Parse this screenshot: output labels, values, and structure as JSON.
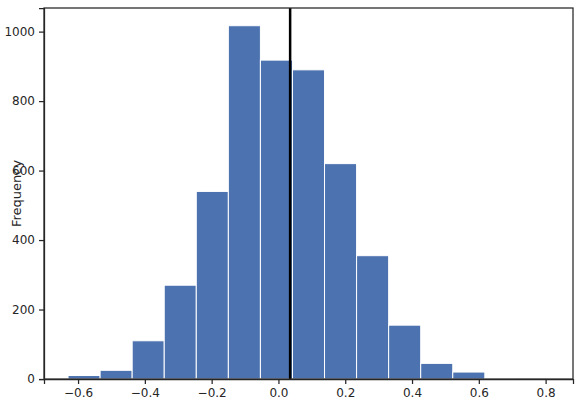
{
  "chart_data": {
    "type": "histogram",
    "y_label": "Frequency",
    "bins": [
      -0.63,
      -0.534,
      -0.438,
      -0.342,
      -0.246,
      -0.15,
      -0.054,
      0.042,
      0.138,
      0.234,
      0.33,
      0.426,
      0.522,
      0.618,
      0.714,
      0.81
    ],
    "values": [
      10,
      25,
      110,
      270,
      540,
      1017,
      918,
      890,
      620,
      355,
      155,
      45,
      20,
      2,
      1
    ],
    "color": "#4c72b0",
    "reference_line": 0.035,
    "xlim": [
      -0.702,
      0.882
    ],
    "ylim": [
      0,
      1068
    ],
    "xticks": [
      {
        "value": -0.6,
        "label": "−0.6"
      },
      {
        "value": -0.4,
        "label": "−0.4"
      },
      {
        "value": -0.2,
        "label": "−0.2"
      },
      {
        "value": 0,
        "label": "0.0"
      },
      {
        "value": 0.2,
        "label": "0.2"
      },
      {
        "value": 0.4,
        "label": "0.4"
      },
      {
        "value": 0.6,
        "label": "0.6"
      },
      {
        "value": 0.8,
        "label": "0.8"
      }
    ],
    "yticks": [
      0,
      200,
      400,
      600,
      800,
      1000
    ],
    "grid": false
  }
}
